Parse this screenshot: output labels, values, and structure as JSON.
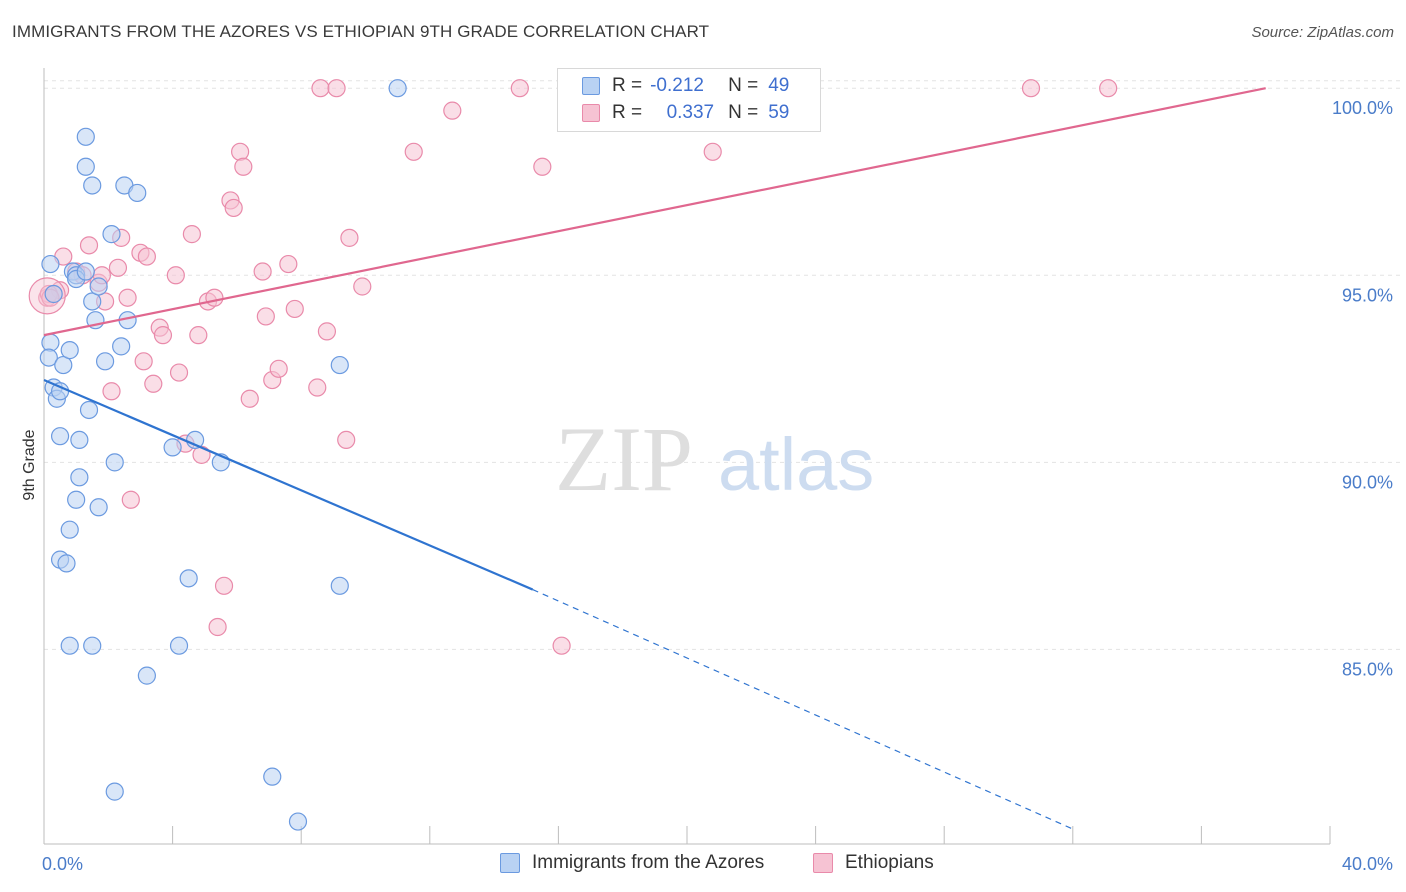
{
  "title": "IMMIGRANTS FROM THE AZORES VS ETHIOPIAN 9TH GRADE CORRELATION CHART",
  "source": "Source: ZipAtlas.com",
  "watermark": {
    "zip": "ZIP",
    "atlas": "atlas"
  },
  "legend": {
    "r_label": "R =",
    "n_label": "N =",
    "series": [
      {
        "r": "-0.212",
        "n": "49"
      },
      {
        "r": "0.337",
        "n": "59"
      }
    ]
  },
  "bottom_legend": [
    "Immigrants from the Azores",
    "Ethiopians"
  ],
  "colors": {
    "blue_fill": "#b9d2f3",
    "blue_stroke": "#6b9ae0",
    "blue_line": "#2f74d0",
    "pink_fill": "#f6c3d3",
    "pink_stroke": "#e98aaa",
    "pink_line": "#e0678f",
    "grid": "#e3e3e3",
    "tick_text": "#4a7cc9"
  },
  "chart_data": {
    "type": "scatter",
    "title": "IMMIGRANTS FROM THE AZORES VS ETHIOPIAN 9TH GRADE CORRELATION CHART",
    "xlabel": "",
    "ylabel": "9th Grade",
    "xlim": [
      0,
      40
    ],
    "ylim": [
      79.8,
      100.7
    ],
    "x_tick_labels": [
      {
        "value": 0,
        "label": "0.0%"
      },
      {
        "value": 40,
        "label": "40.0%"
      }
    ],
    "y_tick_labels": [
      {
        "value": 100,
        "label": "100.0%"
      },
      {
        "value": 95,
        "label": "95.0%"
      },
      {
        "value": 90,
        "label": "90.0%"
      },
      {
        "value": 85,
        "label": "85.0%"
      }
    ],
    "series": [
      {
        "name": "Immigrants from the Azores",
        "r": -0.212,
        "n": 49,
        "trend": {
          "x0": 0,
          "y0": 92.2,
          "x1": 15.2,
          "y1": 86.6,
          "dash_x1": 32.0,
          "dash_y1": 80.2
        },
        "points": [
          [
            0.2,
            95.3
          ],
          [
            0.3,
            94.5
          ],
          [
            0.2,
            93.2
          ],
          [
            0.15,
            92.8
          ],
          [
            0.3,
            92.0
          ],
          [
            0.4,
            91.7
          ],
          [
            0.5,
            91.9
          ],
          [
            0.5,
            90.7
          ],
          [
            0.6,
            92.6
          ],
          [
            0.8,
            93.0
          ],
          [
            0.9,
            95.1
          ],
          [
            1.0,
            95.0
          ],
          [
            1.0,
            94.9
          ],
          [
            1.1,
            90.6
          ],
          [
            1.0,
            89.0
          ],
          [
            1.1,
            89.6
          ],
          [
            0.8,
            88.2
          ],
          [
            0.5,
            87.4
          ],
          [
            0.7,
            87.3
          ],
          [
            0.8,
            85.1
          ],
          [
            1.3,
            95.1
          ],
          [
            1.4,
            91.4
          ],
          [
            1.5,
            94.3
          ],
          [
            1.6,
            93.8
          ],
          [
            1.7,
            94.7
          ],
          [
            1.7,
            88.8
          ],
          [
            1.9,
            92.7
          ],
          [
            1.5,
            85.1
          ],
          [
            1.3,
            98.7
          ],
          [
            1.3,
            97.9
          ],
          [
            1.5,
            97.4
          ],
          [
            2.1,
            96.1
          ],
          [
            2.2,
            90.0
          ],
          [
            2.4,
            93.1
          ],
          [
            2.5,
            97.4
          ],
          [
            2.6,
            93.8
          ],
          [
            2.9,
            97.2
          ],
          [
            3.2,
            84.3
          ],
          [
            4.0,
            90.4
          ],
          [
            4.2,
            85.1
          ],
          [
            4.5,
            86.9
          ],
          [
            4.7,
            90.6
          ],
          [
            5.5,
            90.0
          ],
          [
            7.1,
            81.6
          ],
          [
            7.9,
            80.4
          ],
          [
            2.2,
            81.2
          ],
          [
            9.2,
            92.6
          ],
          [
            9.2,
            86.7
          ],
          [
            11.0,
            100.0
          ]
        ]
      },
      {
        "name": "Ethiopians",
        "r": 0.337,
        "n": 59,
        "trend": {
          "x0": 0,
          "y0": 93.4,
          "x1": 38.0,
          "y1": 100.0
        },
        "points": [
          [
            0.1,
            94.4
          ],
          [
            0.3,
            94.5
          ],
          [
            0.5,
            94.6
          ],
          [
            0.6,
            95.5
          ],
          [
            1.0,
            95.1
          ],
          [
            1.2,
            95.0
          ],
          [
            1.4,
            95.8
          ],
          [
            1.7,
            94.8
          ],
          [
            1.8,
            95.0
          ],
          [
            1.9,
            94.3
          ],
          [
            2.1,
            91.9
          ],
          [
            2.3,
            95.2
          ],
          [
            2.4,
            96.0
          ],
          [
            2.6,
            94.4
          ],
          [
            2.7,
            89.0
          ],
          [
            3.0,
            95.6
          ],
          [
            3.1,
            92.7
          ],
          [
            3.2,
            95.5
          ],
          [
            3.4,
            92.1
          ],
          [
            3.6,
            93.6
          ],
          [
            3.7,
            93.4
          ],
          [
            4.1,
            95.0
          ],
          [
            4.2,
            92.4
          ],
          [
            4.4,
            90.5
          ],
          [
            4.6,
            96.1
          ],
          [
            4.8,
            93.4
          ],
          [
            4.9,
            90.2
          ],
          [
            5.1,
            94.3
          ],
          [
            5.3,
            94.4
          ],
          [
            5.6,
            86.7
          ],
          [
            5.4,
            85.6
          ],
          [
            5.8,
            97.0
          ],
          [
            5.9,
            96.8
          ],
          [
            6.1,
            98.3
          ],
          [
            6.2,
            97.9
          ],
          [
            6.4,
            91.7
          ],
          [
            6.8,
            95.1
          ],
          [
            6.9,
            93.9
          ],
          [
            7.1,
            92.2
          ],
          [
            7.3,
            92.5
          ],
          [
            7.6,
            95.3
          ],
          [
            7.8,
            94.1
          ],
          [
            8.5,
            92.0
          ],
          [
            8.6,
            100.0
          ],
          [
            8.8,
            93.5
          ],
          [
            9.1,
            100.0
          ],
          [
            9.4,
            90.6
          ],
          [
            9.5,
            96.0
          ],
          [
            9.9,
            94.7
          ],
          [
            11.5,
            98.3
          ],
          [
            12.7,
            99.4
          ],
          [
            14.8,
            100.0
          ],
          [
            15.5,
            97.9
          ],
          [
            16.1,
            85.1
          ],
          [
            20.8,
            98.3
          ],
          [
            30.7,
            100.0
          ],
          [
            33.1,
            100.0
          ],
          [
            0.15,
            94.5
          ],
          [
            0.2,
            94.4
          ]
        ]
      }
    ]
  }
}
